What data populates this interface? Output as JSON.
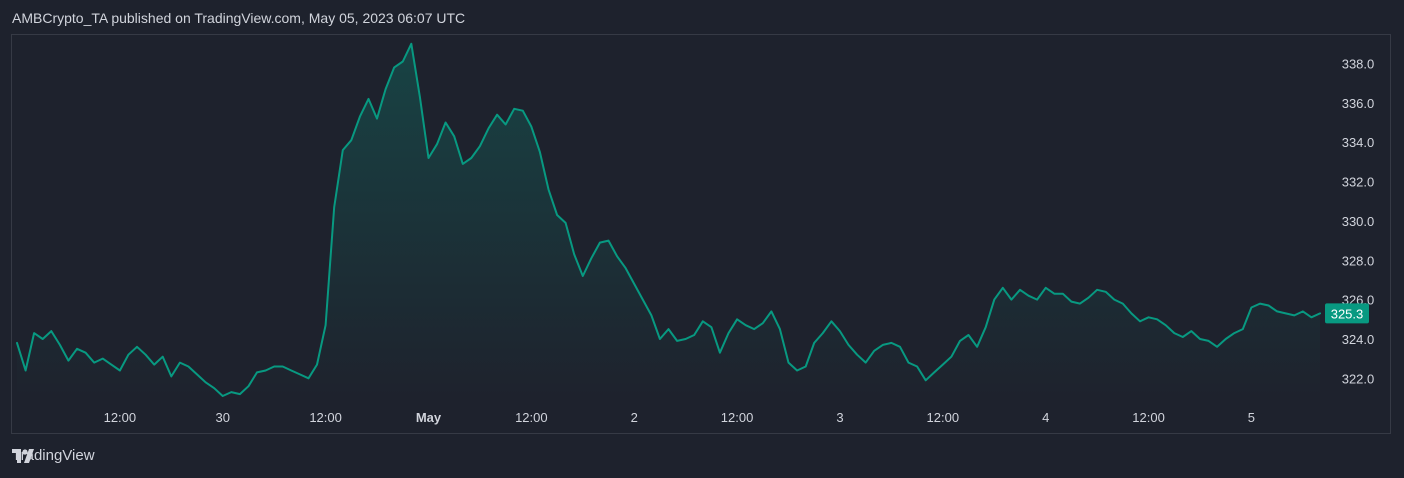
{
  "header": {
    "attribution": "AMBCrypto_TA published on TradingView.com, May 05, 2023 06:07 UTC"
  },
  "footer": {
    "brand": "TradingView"
  },
  "colors": {
    "background": "#1e222d",
    "line": "#089981",
    "grid": "#363a45",
    "label_bg": "#089981"
  },
  "chart_data": {
    "type": "area",
    "title": "",
    "xlabel": "",
    "ylabel": "",
    "ylim": [
      321.0,
      339.5
    ],
    "y_ticks": [
      322.0,
      324.0,
      326.0,
      328.0,
      330.0,
      332.0,
      334.0,
      336.0,
      338.0
    ],
    "x_ticks": [
      {
        "label": "12:00",
        "t": 12
      },
      {
        "label": "30",
        "t": 24
      },
      {
        "label": "12:00",
        "t": 36
      },
      {
        "label": "May",
        "t": 48,
        "bold": true
      },
      {
        "label": "12:00",
        "t": 60
      },
      {
        "label": "2",
        "t": 72
      },
      {
        "label": "12:00",
        "t": 84
      },
      {
        "label": "3",
        "t": 96
      },
      {
        "label": "12:00",
        "t": 108
      },
      {
        "label": "4",
        "t": 120
      },
      {
        "label": "12:00",
        "t": 132
      },
      {
        "label": "5",
        "t": 144
      }
    ],
    "grid": false,
    "last_value_label": "325.3",
    "series": [
      {
        "x": [
          0,
          1,
          2,
          3,
          4,
          5,
          6,
          7,
          8,
          9,
          10,
          11,
          12,
          13,
          14,
          15,
          16,
          17,
          18,
          19,
          20,
          21,
          22,
          23,
          24,
          25,
          26,
          27,
          28,
          29,
          30,
          31,
          32,
          33,
          34,
          35,
          36,
          37,
          38,
          39,
          40,
          41,
          42,
          43,
          44,
          45,
          46,
          47,
          48,
          49,
          50,
          51,
          52,
          53,
          54,
          55,
          56,
          57,
          58,
          59,
          60,
          61,
          62,
          63,
          64,
          65,
          66,
          67,
          68,
          69,
          70,
          71,
          72,
          73,
          74,
          75,
          76,
          77,
          78,
          79,
          80,
          81,
          82,
          83,
          84,
          85,
          86,
          87,
          88,
          89,
          90,
          91,
          92,
          93,
          94,
          95,
          96,
          97,
          98,
          99,
          100,
          101,
          102,
          103,
          104,
          105,
          106,
          107,
          108,
          109,
          110,
          111,
          112,
          113,
          114,
          115,
          116,
          117,
          118,
          119,
          120,
          121,
          122,
          123,
          124,
          125,
          126,
          127,
          128,
          129,
          130,
          131,
          132,
          133,
          134,
          135,
          136,
          137,
          138,
          139,
          140,
          141,
          142,
          143,
          144,
          145,
          146,
          147,
          148,
          149,
          150,
          151,
          152
        ],
        "y": [
          323.8,
          322.4,
          324.3,
          324.0,
          324.4,
          323.7,
          322.9,
          323.5,
          323.3,
          322.8,
          323.0,
          322.7,
          322.4,
          323.2,
          323.6,
          323.2,
          322.7,
          323.1,
          322.1,
          322.8,
          322.6,
          322.2,
          321.8,
          321.5,
          321.1,
          321.3,
          321.2,
          321.6,
          322.3,
          322.4,
          322.6,
          322.6,
          322.4,
          322.2,
          322.0,
          322.7,
          324.7,
          330.7,
          333.6,
          334.1,
          335.3,
          336.2,
          335.2,
          336.7,
          337.8,
          338.1,
          339.0,
          336.3,
          333.2,
          333.9,
          335.0,
          334.3,
          332.9,
          333.2,
          333.8,
          334.7,
          335.4,
          334.9,
          335.7,
          335.6,
          334.8,
          333.5,
          331.6,
          330.3,
          329.9,
          328.3,
          327.2,
          328.1,
          328.9,
          329.0,
          328.2,
          327.6,
          326.8,
          326.0,
          325.2,
          324.0,
          324.5,
          323.9,
          324.0,
          324.2,
          324.9,
          324.6,
          323.3,
          324.3,
          325.0,
          324.7,
          324.5,
          324.8,
          325.4,
          324.5,
          322.8,
          322.4,
          322.6,
          323.8,
          324.3,
          324.9,
          324.4,
          323.7,
          323.2,
          322.8,
          323.4,
          323.7,
          323.8,
          323.6,
          322.8,
          322.6,
          321.9,
          322.3,
          322.7,
          323.1,
          323.9,
          324.2,
          323.6,
          324.6,
          326.0,
          326.6,
          326.0,
          326.5,
          326.2,
          326.0,
          326.6,
          326.3,
          326.3,
          325.9,
          325.8,
          326.1,
          326.5,
          326.4,
          326.0,
          325.8,
          325.3,
          324.9,
          325.1,
          325.0,
          324.7,
          324.3,
          324.1,
          324.4,
          324.0,
          323.9,
          323.6,
          324.0,
          324.3,
          324.5,
          325.6,
          325.8,
          325.7,
          325.4,
          325.3,
          325.2,
          325.4,
          325.1,
          325.3
        ]
      }
    ]
  }
}
